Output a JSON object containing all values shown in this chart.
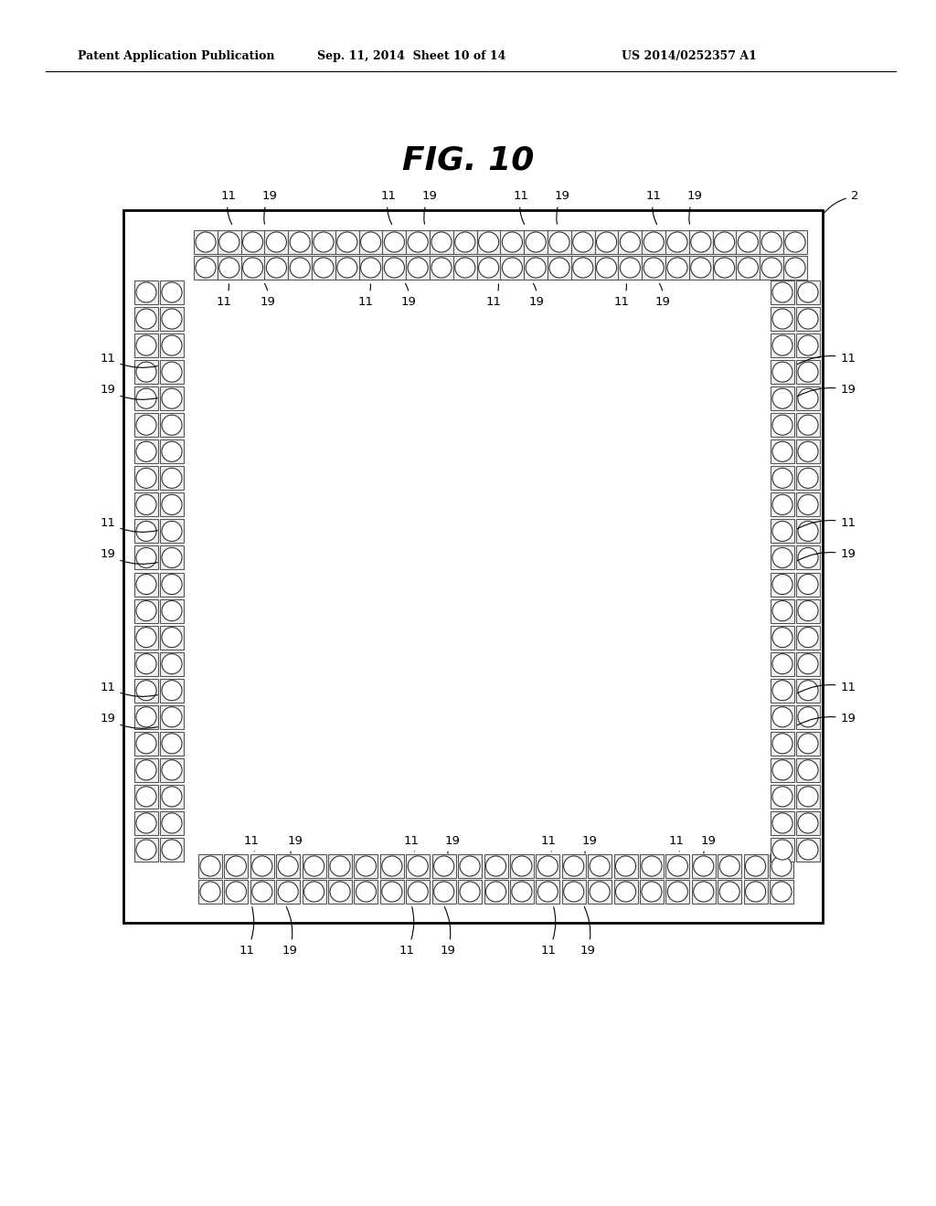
{
  "background_color": "#ffffff",
  "header_left": "Patent Application Publication",
  "header_center": "Sep. 11, 2014  Sheet 10 of 14",
  "header_right": "US 2014/0252357 A1",
  "fig_title": "FIG. 10"
}
